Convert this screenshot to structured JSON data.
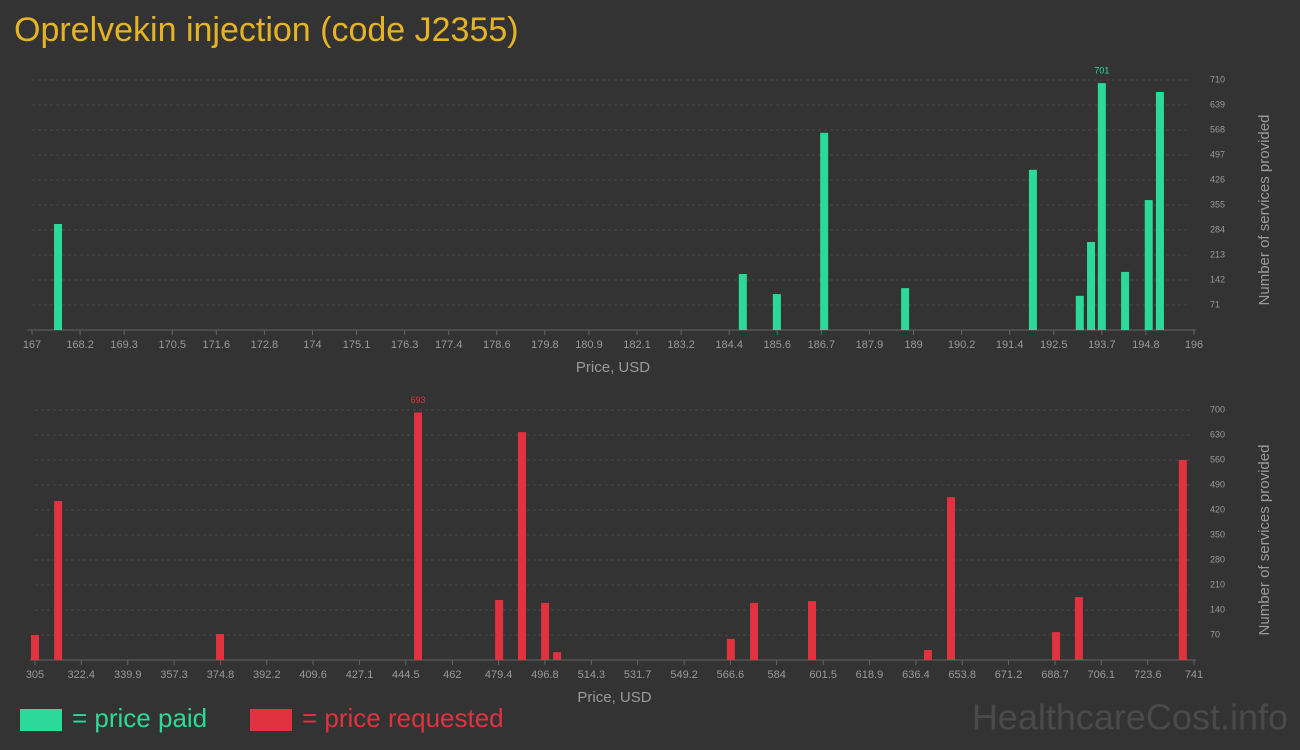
{
  "title": "Oprelvekin injection (code J2355)",
  "watermark": "HealthcareCost.info",
  "chart_data": [
    {
      "type": "bar",
      "x_label": "Price, USD",
      "y_label": "Number of services provided",
      "xlim": [
        167,
        196
      ],
      "xticks": [
        167,
        168.2,
        169.3,
        170.5,
        171.6,
        172.8,
        174,
        175.1,
        176.3,
        177.4,
        178.6,
        179.8,
        180.9,
        182.1,
        183.2,
        184.4,
        185.6,
        186.7,
        187.9,
        189,
        190.2,
        191.4,
        192.5,
        193.7,
        194.8,
        196
      ],
      "ylim": [
        0,
        710
      ],
      "yticks": [
        71,
        142,
        213,
        284,
        355,
        426,
        497,
        568,
        639,
        710
      ],
      "grid": true,
      "series": [
        {
          "name": "= price paid",
          "color": "#2bd99a",
          "x": [
            167.65,
            184.74,
            185.59,
            186.77,
            188.79,
            191.98,
            193.15,
            193.43,
            193.7,
            194.28,
            194.87,
            195.15
          ],
          "values": [
            301,
            159,
            102,
            560,
            119,
            455,
            97,
            250,
            701,
            165,
            369,
            676
          ]
        }
      ]
    },
    {
      "type": "bar",
      "x_label": "Price, USD",
      "y_label": "Number of services provided",
      "xlim": [
        305,
        741
      ],
      "xticks": [
        305,
        322.4,
        339.9,
        357.3,
        374.8,
        392.2,
        409.6,
        427.1,
        444.5,
        462,
        479.4,
        496.8,
        514.3,
        531.7,
        549.2,
        566.6,
        584,
        601.5,
        618.9,
        636.4,
        653.8,
        671.2,
        688.7,
        706.1,
        723.6,
        741
      ],
      "ylim": [
        0,
        700
      ],
      "yticks": [
        70,
        140,
        210,
        280,
        350,
        420,
        490,
        560,
        630,
        700
      ],
      "grid": true,
      "series": [
        {
          "name": "= price requested",
          "color": "#e0323f",
          "x": [
            305,
            313.7,
            374.6,
            449.1,
            479.6,
            488.2,
            496.9,
            501.4,
            566.8,
            575.5,
            597.3,
            640.9,
            649.6,
            689.1,
            697.7,
            736.8
          ],
          "values": [
            70,
            445,
            73,
            693,
            168,
            638,
            160,
            22,
            59,
            160,
            165,
            28,
            456,
            78,
            176,
            560
          ]
        }
      ]
    }
  ]
}
